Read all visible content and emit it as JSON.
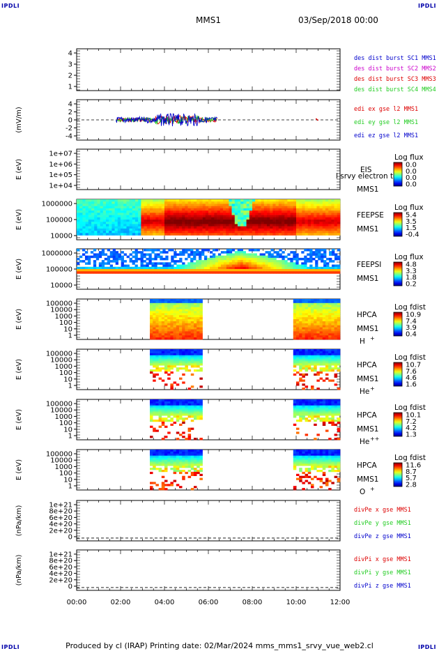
{
  "corners": {
    "top_left": "IPDLI",
    "top_right": "IPDLI",
    "bottom_left": "IPDLI",
    "bottom_right": "IPDLI"
  },
  "header": {
    "title": "MMS1",
    "date": "03/Sep/2018 00:00"
  },
  "footer": {
    "text": "Produced by cl (IRAP)   Printing date: 02/Mar/2024   mms_mms1_srvy_vue_web2.cl"
  },
  "colors": {
    "red": "#dd0000",
    "green": "#22cc22",
    "blue": "#0000cc",
    "magenta": "#cc00cc"
  },
  "chart_data": [
    {
      "type": "line",
      "panel": "des_dist_burst",
      "ylim": [
        0.6,
        4.4
      ],
      "yticks": [
        "4",
        "3",
        "2",
        "1"
      ],
      "series": [
        {
          "name": "des dist burst SC1 MMS1",
          "color": "#0000cc",
          "values": []
        },
        {
          "name": "des dist burst SC2 MMS2",
          "color": "#cc00cc",
          "values": []
        },
        {
          "name": "des dist burst SC3 MMS3",
          "color": "#dd0000",
          "values": []
        },
        {
          "name": "des dist burst SC4 MMS4",
          "color": "#22cc22",
          "values": []
        }
      ]
    },
    {
      "type": "line",
      "panel": "edi_e_gse",
      "ylabel": "(mV/m)",
      "ylim": [
        -5,
        5
      ],
      "yticks": [
        "4",
        "2",
        "0",
        "-2",
        "-4"
      ],
      "series": [
        {
          "name": "edi ex gse l2 MMS1",
          "color": "#dd0000"
        },
        {
          "name": "edi ey gse l2 MMS1",
          "color": "#22cc22"
        },
        {
          "name": "edi ez gse l2 MMS1",
          "color": "#0000cc"
        }
      ],
      "data_intervals_hours": [
        [
          1.8,
          6.4
        ],
        [
          10.9,
          11.0
        ]
      ]
    },
    {
      "type": "heatmap",
      "panel": "EIS",
      "ylabel": "E (eV)",
      "scale": "log",
      "yticks": [
        "1e+07",
        "1e+06",
        "1e+05",
        "1e+04"
      ],
      "labels": [
        "EIS",
        "MMS1"
      ],
      "overlay_text": "l srvy electron to",
      "colorbar": {
        "title": "Log flux",
        "ticks": [
          "0.0",
          "0.0",
          "0.0",
          "0.0"
        ]
      }
    },
    {
      "type": "heatmap",
      "panel": "FEEPSE",
      "ylabel": "E (eV)",
      "scale": "log",
      "yticks": [
        "1000000",
        "100000",
        "10000"
      ],
      "labels": [
        "FEEPSE",
        "MMS1"
      ],
      "colorbar": {
        "title": "Log flux",
        "ticks": [
          "5.4",
          "3.5",
          "1.5",
          "-0.4"
        ]
      }
    },
    {
      "type": "heatmap",
      "panel": "FEEPSI",
      "ylabel": "E (eV)",
      "scale": "log",
      "yticks": [
        "1000000",
        "100000",
        "10000"
      ],
      "labels": [
        "FEEPSI",
        "MMS1"
      ],
      "colorbar": {
        "title": "Log flux",
        "ticks": [
          "4.8",
          "3.3",
          "1.8",
          "0.2"
        ]
      }
    },
    {
      "type": "heatmap",
      "panel": "HPCA_H",
      "ylabel": "E (eV)",
      "scale": "log",
      "yticks": [
        "100000",
        "10000",
        "1000",
        "100",
        "10",
        "1"
      ],
      "labels": [
        "HPCA",
        "MMS1",
        "H",
        "+"
      ],
      "data_intervals_hours": [
        [
          3.35,
          5.75
        ],
        [
          9.9,
          12.0
        ]
      ],
      "colorbar": {
        "title": "Log fdist",
        "ticks": [
          "10.9",
          "7.4",
          "3.9",
          "0.4"
        ]
      }
    },
    {
      "type": "heatmap",
      "panel": "HPCA_He+",
      "ylabel": "E (eV)",
      "scale": "log",
      "yticks": [
        "100000",
        "10000",
        "1000",
        "100",
        "10",
        "1"
      ],
      "labels": [
        "HPCA",
        "MMS1",
        "He",
        "+"
      ],
      "data_intervals_hours": [
        [
          3.35,
          5.75
        ],
        [
          9.9,
          12.0
        ]
      ],
      "colorbar": {
        "title": "Log fdist",
        "ticks": [
          "10.7",
          "7.6",
          "4.6",
          "1.6"
        ]
      }
    },
    {
      "type": "heatmap",
      "panel": "HPCA_He++",
      "ylabel": "E (eV)",
      "scale": "log",
      "yticks": [
        "100000",
        "10000",
        "1000",
        "100",
        "10",
        "1"
      ],
      "labels": [
        "HPCA",
        "MMS1",
        "He",
        "++"
      ],
      "data_intervals_hours": [
        [
          3.35,
          5.75
        ],
        [
          9.9,
          12.0
        ]
      ],
      "colorbar": {
        "title": "Log fdist",
        "ticks": [
          "10.1",
          "7.2",
          "4.2",
          "1.3"
        ]
      }
    },
    {
      "type": "heatmap",
      "panel": "HPCA_O+",
      "ylabel": "E (eV)",
      "scale": "log",
      "yticks": [
        "100000",
        "10000",
        "1000",
        "100",
        "10",
        "1"
      ],
      "labels": [
        "HPCA",
        "MMS1",
        "O",
        "+"
      ],
      "data_intervals_hours": [
        [
          3.35,
          5.75
        ],
        [
          9.9,
          12.0
        ]
      ],
      "colorbar": {
        "title": "Log fdist",
        "ticks": [
          "11.6",
          "8.7",
          "5.7",
          "2.8"
        ]
      }
    },
    {
      "type": "line",
      "panel": "divPe",
      "ylabel": "(nPa/km)",
      "ylim": [
        -1e+20,
        1.05e+21
      ],
      "yticks": [
        "1e+21",
        "8e+20",
        "6e+20",
        "4e+20",
        "2e+20",
        "0"
      ],
      "series": [
        {
          "name": "divPe x gse MMS1",
          "color": "#dd0000",
          "values": []
        },
        {
          "name": "divPe y gse MMS1",
          "color": "#22cc22",
          "values": []
        },
        {
          "name": "divPe z gse MMS1",
          "color": "#0000cc",
          "values": []
        }
      ]
    },
    {
      "type": "line",
      "panel": "divPi",
      "ylabel": "(nPa/km)",
      "ylim": [
        -1e+20,
        1.05e+21
      ],
      "yticks": [
        "1e+21",
        "8e+20",
        "6e+20",
        "4e+20",
        "2e+20",
        "0"
      ],
      "series": [
        {
          "name": "divPi x gse MMS1",
          "color": "#dd0000",
          "values": []
        },
        {
          "name": "divPi y gse MMS1",
          "color": "#22cc22",
          "values": []
        },
        {
          "name": "divPi z gse MMS1",
          "color": "#0000cc",
          "values": []
        }
      ]
    }
  ],
  "xaxis": {
    "ticks": [
      "00:00",
      "02:00",
      "04:00",
      "06:00",
      "08:00",
      "10:00",
      "12:00"
    ],
    "range_hours": [
      0,
      12
    ]
  }
}
